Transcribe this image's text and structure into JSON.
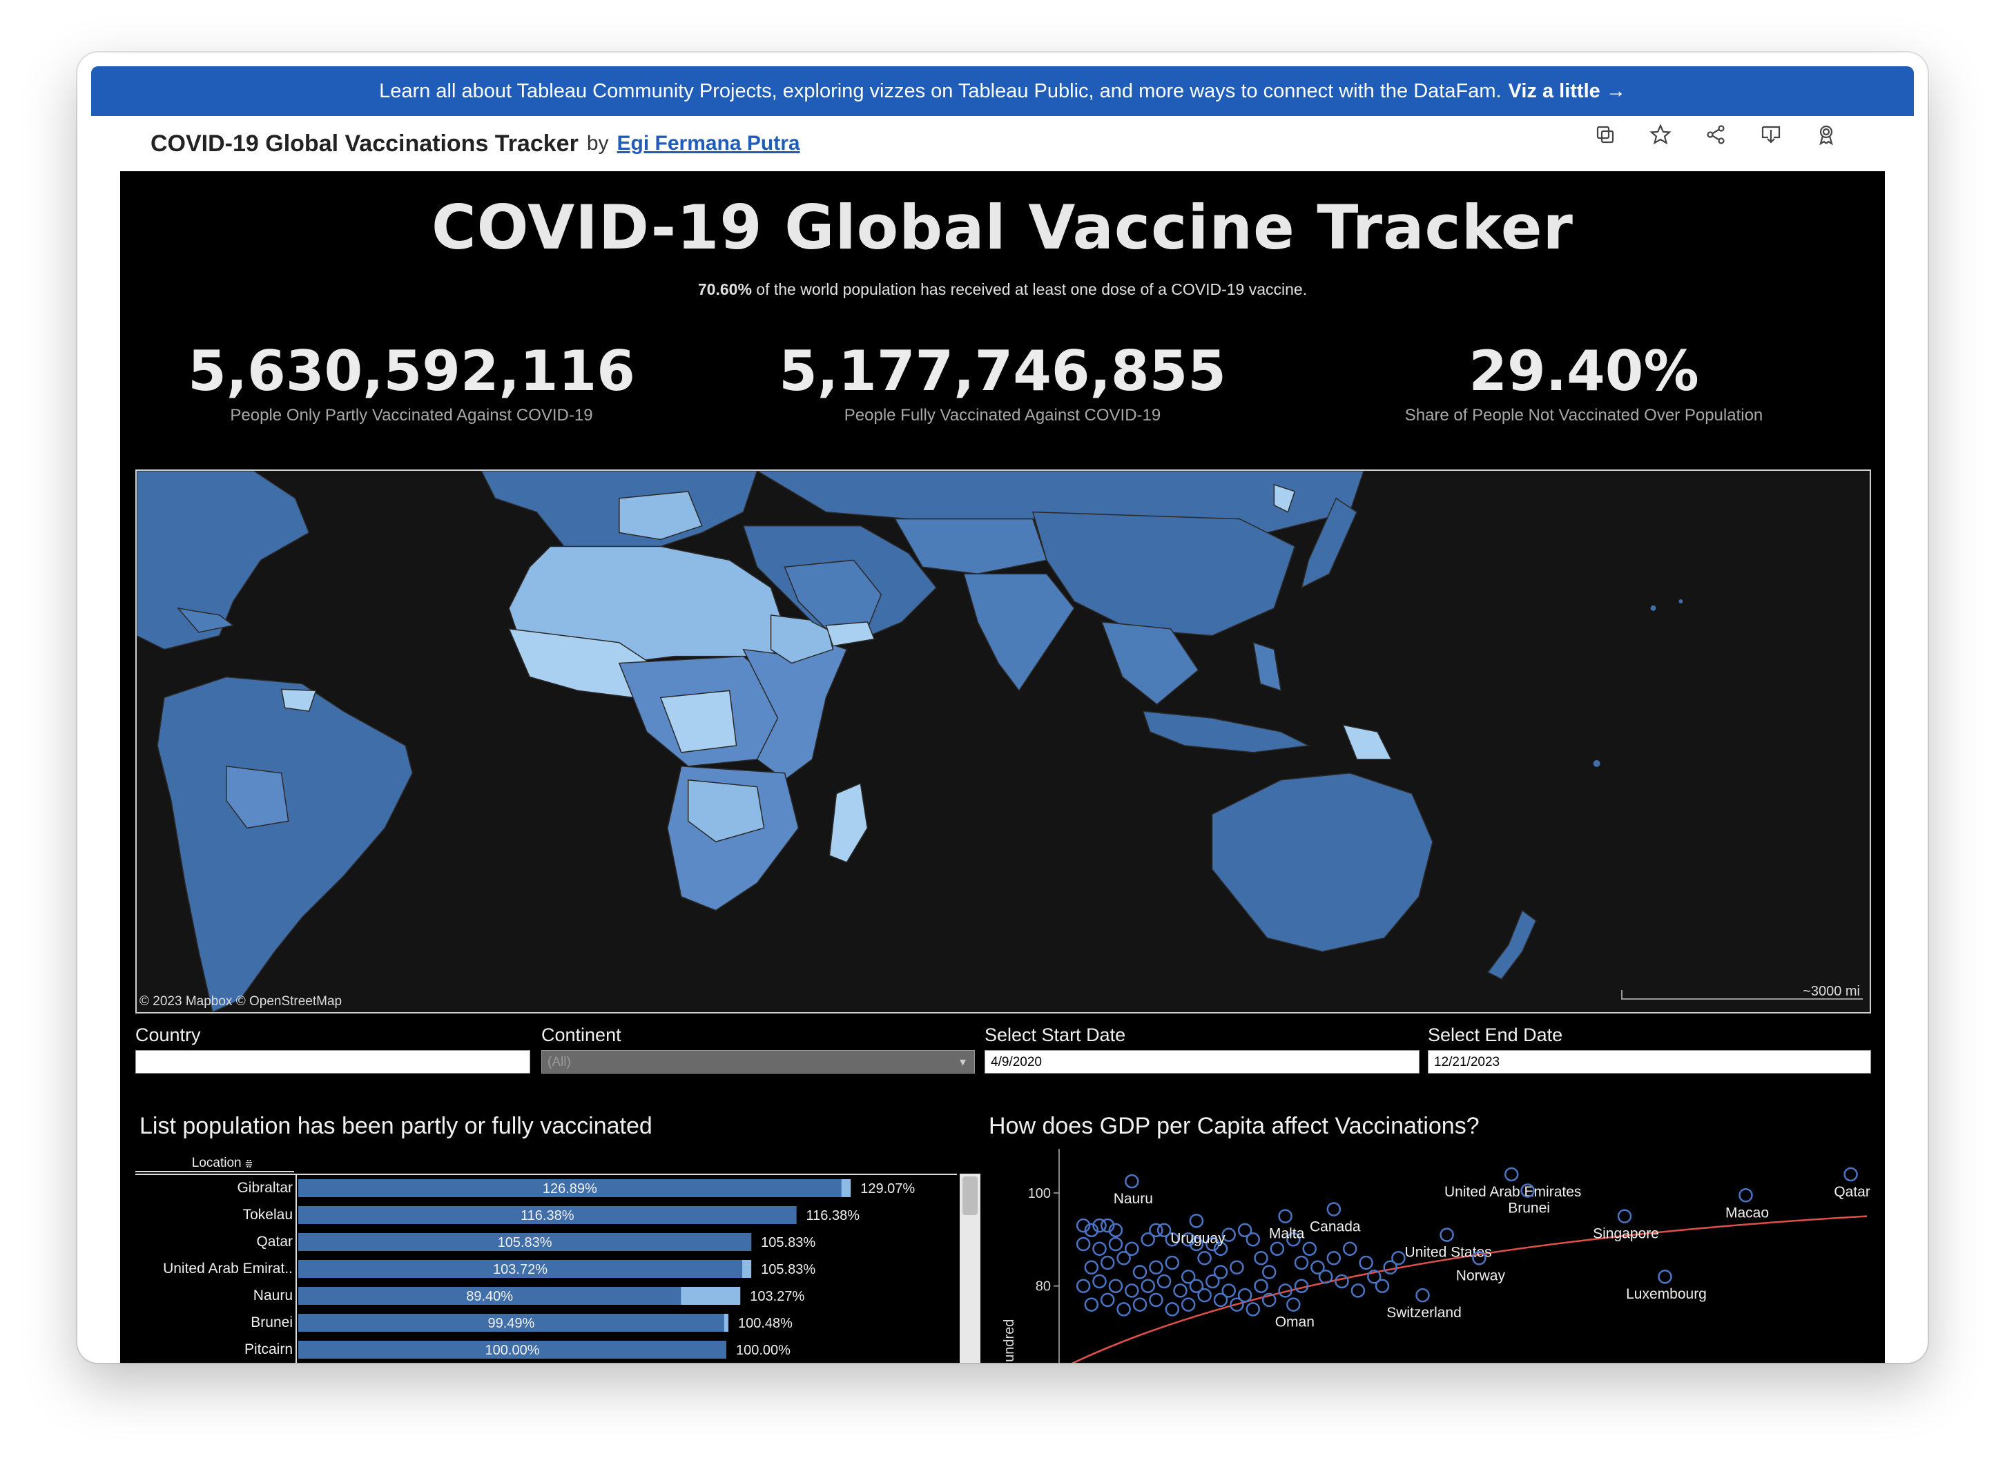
{
  "banner": {
    "text": "Learn all about Tableau Community Projects, exploring vizzes on Tableau Public, and more ways to connect with the DataFam.",
    "link": "Viz a little →"
  },
  "header": {
    "title": "COVID-19 Global Vaccinations Tracker",
    "by": "by",
    "author": "Egi Fermana Putra",
    "toolbar_icons": [
      "copy-icon",
      "star-icon",
      "share-icon",
      "download-icon",
      "award-icon"
    ]
  },
  "dashboard": {
    "title": "COVID-19 Global Vaccine Tracker",
    "subtitle_bold": "70.60%",
    "subtitle_rest": "of the world population has received at least one dose of a COVID-19 vaccine.",
    "kpis": [
      {
        "value": "5,630,592,116",
        "label": "People Only Partly Vaccinated Against COVID-19"
      },
      {
        "value": "5,177,746,855",
        "label": "People Fully Vaccinated Against COVID-19"
      },
      {
        "value": "29.40%",
        "label": "Share of People Not Vaccinated Over Population"
      }
    ],
    "map": {
      "credit": "© 2023 Mapbox © OpenStreetMap",
      "scale": "~3000 mi",
      "colors": {
        "ocean": "#141414",
        "dark": "#3f6ea8",
        "mid": "#5b8ac7",
        "light": "#8dbbe6",
        "lightest": "#a9d0f0"
      }
    },
    "filters": [
      {
        "label": "Country",
        "value": ""
      },
      {
        "label": "Continent",
        "value": "(All)"
      },
      {
        "label": "Select Start Date",
        "value": "4/9/2020"
      },
      {
        "label": "Select End Date",
        "value": "12/21/2023"
      }
    ],
    "bar_section_title": "List population has been partly or fully vaccinated",
    "bar_header": "Location",
    "scatter_section_title": "How does GDP per Capita affect Vaccinations?"
  },
  "chart_data": [
    {
      "type": "bar",
      "categories": [
        "Gibraltar",
        "Tokelau",
        "Qatar",
        "United Arab Emirat..",
        "Nauru",
        "Brunei",
        "Pitcairn"
      ],
      "series": [
        {
          "values": [
            126.89,
            116.38,
            105.83,
            103.72,
            89.4,
            99.49,
            100.0
          ],
          "labels": [
            "126.89%",
            "116.38%",
            "105.83%",
            "103.72%",
            "89.40%",
            "99.49%",
            "100.00%"
          ]
        },
        {
          "values": [
            129.07,
            116.38,
            105.83,
            105.83,
            103.27,
            100.48,
            100.0
          ],
          "labels": [
            "129.07%",
            "116.38%",
            "105.83%",
            "105.83%",
            "103.27%",
            "100.48%",
            "100.00%"
          ]
        }
      ],
      "xlabel": "",
      "ylabel": "Location"
    },
    {
      "type": "scatter",
      "title": "How does GDP per Capita affect Vaccinations?",
      "ylabel": "Per Hundred",
      "yticks": [
        80,
        100
      ],
      "ylim": [
        62,
        108
      ],
      "xlim": [
        0,
        100
      ],
      "labeled_points": [
        {
          "name": "Nauru",
          "x": 9,
          "y": 102.5
        },
        {
          "name": "United Arab Emirates",
          "x": 56,
          "y": 104
        },
        {
          "name": "Qatar",
          "x": 98,
          "y": 104
        },
        {
          "name": "Brunei",
          "x": 58,
          "y": 100.5
        },
        {
          "name": "Macao",
          "x": 85,
          "y": 99.5
        },
        {
          "name": "Malta",
          "x": 28,
          "y": 95
        },
        {
          "name": "Canada",
          "x": 34,
          "y": 96.5
        },
        {
          "name": "Uruguay",
          "x": 17,
          "y": 94
        },
        {
          "name": "Singapore",
          "x": 70,
          "y": 95
        },
        {
          "name": "United States",
          "x": 48,
          "y": 91
        },
        {
          "name": "Norway",
          "x": 52,
          "y": 86
        },
        {
          "name": "Luxembourg",
          "x": 75,
          "y": 82
        },
        {
          "name": "Oman",
          "x": 29,
          "y": 76
        },
        {
          "name": "Switzerland",
          "x": 45,
          "y": 78
        }
      ],
      "unlabeled_points": [
        [
          3,
          93
        ],
        [
          4,
          92
        ],
        [
          5,
          93
        ],
        [
          6,
          93
        ],
        [
          7,
          92
        ],
        [
          3,
          89
        ],
        [
          5,
          88
        ],
        [
          7,
          89
        ],
        [
          9,
          88
        ],
        [
          11,
          90
        ],
        [
          12,
          92
        ],
        [
          13,
          92
        ],
        [
          14,
          90
        ],
        [
          16,
          90
        ],
        [
          17,
          89
        ],
        [
          19,
          89
        ],
        [
          20,
          88
        ],
        [
          21,
          91
        ],
        [
          23,
          92
        ],
        [
          4,
          84
        ],
        [
          6,
          85
        ],
        [
          8,
          86
        ],
        [
          10,
          83
        ],
        [
          12,
          84
        ],
        [
          14,
          85
        ],
        [
          16,
          82
        ],
        [
          18,
          86
        ],
        [
          20,
          83
        ],
        [
          22,
          84
        ],
        [
          3,
          80
        ],
        [
          5,
          81
        ],
        [
          7,
          80
        ],
        [
          9,
          79
        ],
        [
          11,
          80
        ],
        [
          13,
          81
        ],
        [
          15,
          79
        ],
        [
          17,
          80
        ],
        [
          19,
          81
        ],
        [
          21,
          79
        ],
        [
          23,
          78
        ],
        [
          25,
          80
        ],
        [
          4,
          76
        ],
        [
          6,
          77
        ],
        [
          8,
          75
        ],
        [
          10,
          76
        ],
        [
          12,
          77
        ],
        [
          14,
          75
        ],
        [
          16,
          76
        ],
        [
          18,
          78
        ],
        [
          20,
          77
        ],
        [
          22,
          76
        ],
        [
          24,
          75
        ],
        [
          26,
          77
        ],
        [
          28,
          79
        ],
        [
          30,
          80
        ],
        [
          32,
          84
        ],
        [
          34,
          86
        ],
        [
          36,
          88
        ],
        [
          38,
          85
        ],
        [
          31,
          88
        ],
        [
          33,
          82
        ],
        [
          35,
          81
        ],
        [
          37,
          79
        ],
        [
          39,
          82
        ],
        [
          41,
          84
        ],
        [
          25,
          86
        ],
        [
          27,
          88
        ],
        [
          29,
          90
        ],
        [
          26,
          83
        ],
        [
          24,
          90
        ],
        [
          30,
          85
        ],
        [
          40,
          80
        ],
        [
          42,
          86
        ]
      ],
      "trendline": {
        "from": [
          0,
          62
        ],
        "to": [
          100,
          95
        ]
      }
    }
  ]
}
